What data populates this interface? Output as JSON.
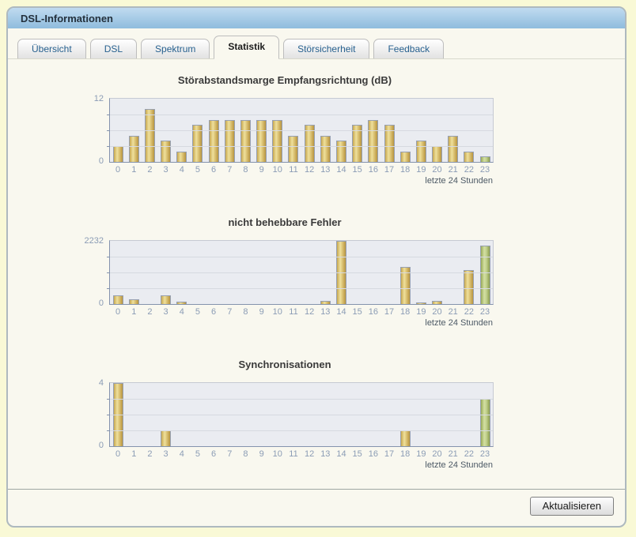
{
  "window": {
    "title": "DSL-Informationen"
  },
  "tabs": [
    {
      "id": "uebersicht",
      "label": "Übersicht",
      "active": false
    },
    {
      "id": "dsl",
      "label": "DSL",
      "active": false
    },
    {
      "id": "spektrum",
      "label": "Spektrum",
      "active": false
    },
    {
      "id": "statistik",
      "label": "Statistik",
      "active": true
    },
    {
      "id": "stoersicherheit",
      "label": "Störsicherheit",
      "active": false
    },
    {
      "id": "feedback",
      "label": "Feedback",
      "active": false
    }
  ],
  "footer": {
    "refresh_label": "Aktualisieren"
  },
  "colors": {
    "page_bg": "#f9f9d6",
    "panel_bg": "#f9f8ef",
    "titlebar_top": "#c0dbf0",
    "titlebar_bottom": "#8fbcdd",
    "plot_bg": "#eaecf1",
    "gridline": "#d6d9e0",
    "axis": "#8493ad",
    "tick_label": "#8b9cb5",
    "bar_yellow": "#d9bc66",
    "bar_green_current_hour": "#b4c478",
    "tab_text": "#28618f"
  },
  "chart_data": [
    {
      "type": "bar",
      "title": "Störabstandsmarge Empfangsrichtung (dB)",
      "categories": [
        "0",
        "1",
        "2",
        "3",
        "4",
        "5",
        "6",
        "7",
        "8",
        "9",
        "10",
        "11",
        "12",
        "13",
        "14",
        "15",
        "16",
        "17",
        "18",
        "19",
        "20",
        "21",
        "22",
        "23"
      ],
      "values": [
        3,
        5,
        10,
        4,
        2,
        7,
        8,
        8,
        8,
        8,
        8,
        5,
        7,
        5,
        4,
        7,
        8,
        7,
        2,
        4,
        3,
        5,
        2,
        1
      ],
      "ymax": 12,
      "ymax_label": "12",
      "ymin_label": "0",
      "gridline_divisions": 4,
      "xcaption": "letzte 24 Stunden",
      "highlight_last_bar_green": true,
      "xlabel": "",
      "ylabel": "",
      "ylim": [
        0,
        12
      ]
    },
    {
      "type": "bar",
      "title": "nicht behebbare Fehler",
      "categories": [
        "0",
        "1",
        "2",
        "3",
        "4",
        "5",
        "6",
        "7",
        "8",
        "9",
        "10",
        "11",
        "12",
        "13",
        "14",
        "15",
        "16",
        "17",
        "18",
        "19",
        "20",
        "21",
        "22",
        "23"
      ],
      "values": [
        300,
        180,
        0,
        300,
        90,
        0,
        0,
        0,
        0,
        0,
        0,
        0,
        0,
        110,
        2232,
        0,
        0,
        0,
        1320,
        55,
        120,
        0,
        1190,
        2060
      ],
      "ymax": 2232,
      "ymax_label": "2232",
      "ymin_label": "0",
      "gridline_divisions": 4,
      "xcaption": "letzte 24 Stunden",
      "highlight_last_bar_green": true,
      "xlabel": "",
      "ylabel": "",
      "ylim": [
        0,
        2232
      ]
    },
    {
      "type": "bar",
      "title": "Synchronisationen",
      "categories": [
        "0",
        "1",
        "2",
        "3",
        "4",
        "5",
        "6",
        "7",
        "8",
        "9",
        "10",
        "11",
        "12",
        "13",
        "14",
        "15",
        "16",
        "17",
        "18",
        "19",
        "20",
        "21",
        "22",
        "23"
      ],
      "values": [
        4,
        0,
        0,
        1,
        0,
        0,
        0,
        0,
        0,
        0,
        0,
        0,
        0,
        0,
        0,
        0,
        0,
        0,
        1,
        0,
        0,
        0,
        0,
        3
      ],
      "ymax": 4,
      "ymax_label": "4",
      "ymin_label": "0",
      "gridline_divisions": 4,
      "xcaption": "letzte 24 Stunden",
      "highlight_last_bar_green": true,
      "xlabel": "",
      "ylabel": "",
      "ylim": [
        0,
        4
      ]
    }
  ]
}
